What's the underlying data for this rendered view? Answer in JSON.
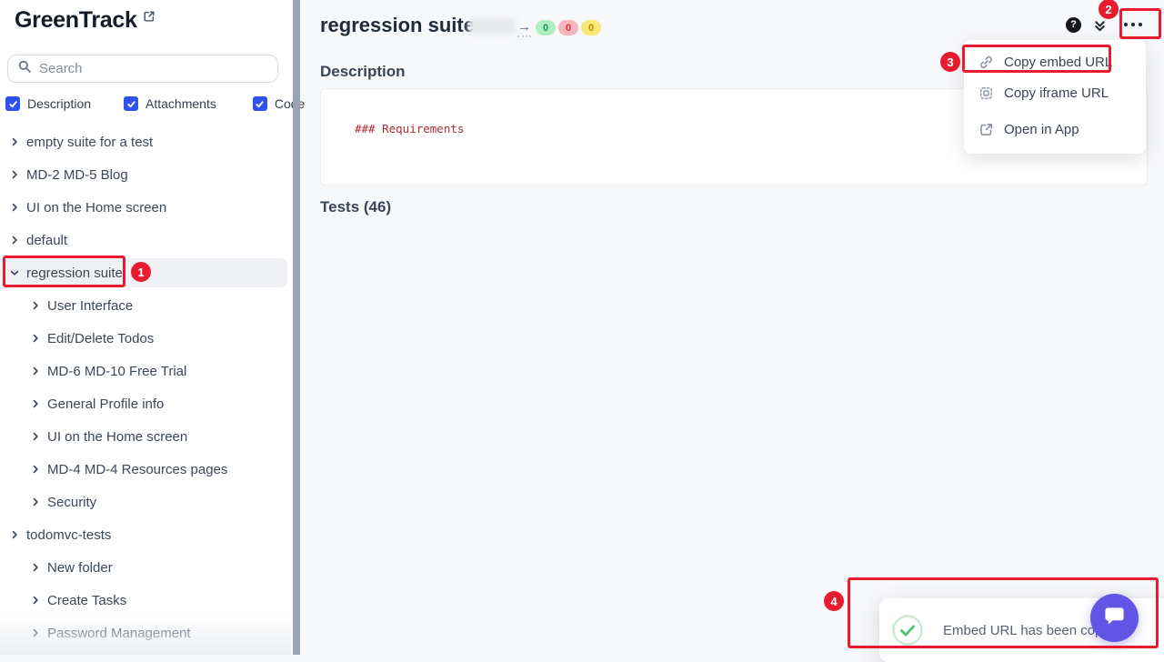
{
  "colors": {
    "annotation_red": "#e81c2e",
    "accent_blue": "#3051ea",
    "chat_purple": "#6155e6",
    "scrollbar_gray": "#9aa3b2",
    "code_red": "#b12a35",
    "badge_green_bg": "#b2eec4",
    "badge_green_text": "#189b4a",
    "badge_red_bg": "#f7b6bb",
    "badge_red_text": "#df2935",
    "badge_yellow_bg": "#f9e878",
    "badge_yellow_text": "#b08f00",
    "toast_check_green": "#58c273"
  },
  "sidebar": {
    "app_title": "GreenTrack",
    "search": {
      "placeholder": "Search"
    },
    "filters": [
      {
        "label": "Description",
        "checked": true
      },
      {
        "label": "Attachments",
        "checked": true
      },
      {
        "label": "Code",
        "checked": true
      }
    ],
    "tree": [
      {
        "label": "empty suite for a test",
        "level": 0,
        "expanded": false,
        "selected": false
      },
      {
        "label": "MD-2 MD-5 Blog",
        "level": 0,
        "expanded": false,
        "selected": false
      },
      {
        "label": "UI on the Home screen",
        "level": 0,
        "expanded": false,
        "selected": false
      },
      {
        "label": "default",
        "level": 0,
        "expanded": false,
        "selected": false
      },
      {
        "label": "regression suite",
        "level": 0,
        "expanded": true,
        "selected": true
      },
      {
        "label": "User Interface",
        "level": 1,
        "expanded": false,
        "selected": false
      },
      {
        "label": "Edit/Delete Todos",
        "level": 1,
        "expanded": false,
        "selected": false
      },
      {
        "label": "MD-6 MD-10 Free Trial",
        "level": 1,
        "expanded": false,
        "selected": false
      },
      {
        "label": "General Profile info",
        "level": 1,
        "expanded": false,
        "selected": false
      },
      {
        "label": "UI on the Home screen",
        "level": 1,
        "expanded": false,
        "selected": false
      },
      {
        "label": "MD-4 MD-4 Resources pages",
        "level": 1,
        "expanded": false,
        "selected": false
      },
      {
        "label": "Security",
        "level": 1,
        "expanded": false,
        "selected": false
      },
      {
        "label": "todomvc-tests",
        "level": 0,
        "expanded": false,
        "selected": false
      },
      {
        "label": "New folder",
        "level": 1,
        "expanded": false,
        "selected": false
      },
      {
        "label": "Create Tasks",
        "level": 1,
        "expanded": false,
        "selected": false
      },
      {
        "label": "Password Management",
        "level": 1,
        "expanded": false,
        "selected": false
      }
    ]
  },
  "header": {
    "title": "regression suite",
    "arrow": "→",
    "badges": [
      {
        "value": "0",
        "variant": "green"
      },
      {
        "value": "0",
        "variant": "red"
      },
      {
        "value": "0",
        "variant": "yellow"
      }
    ],
    "question_mark": "?"
  },
  "content": {
    "description_heading": "Description",
    "description_code": "### Requirements",
    "tests_heading": "Tests (46)"
  },
  "menu": {
    "items": [
      {
        "label": "Copy embed URL",
        "icon": "link-icon"
      },
      {
        "label": "Copy iframe URL",
        "icon": "iframe-icon"
      },
      {
        "label": "Open in App",
        "icon": "external-link-icon"
      }
    ]
  },
  "toast": {
    "message": "Embed URL has been copied"
  },
  "annotations": [
    {
      "number": "1"
    },
    {
      "number": "2"
    },
    {
      "number": "3"
    },
    {
      "number": "4"
    }
  ]
}
